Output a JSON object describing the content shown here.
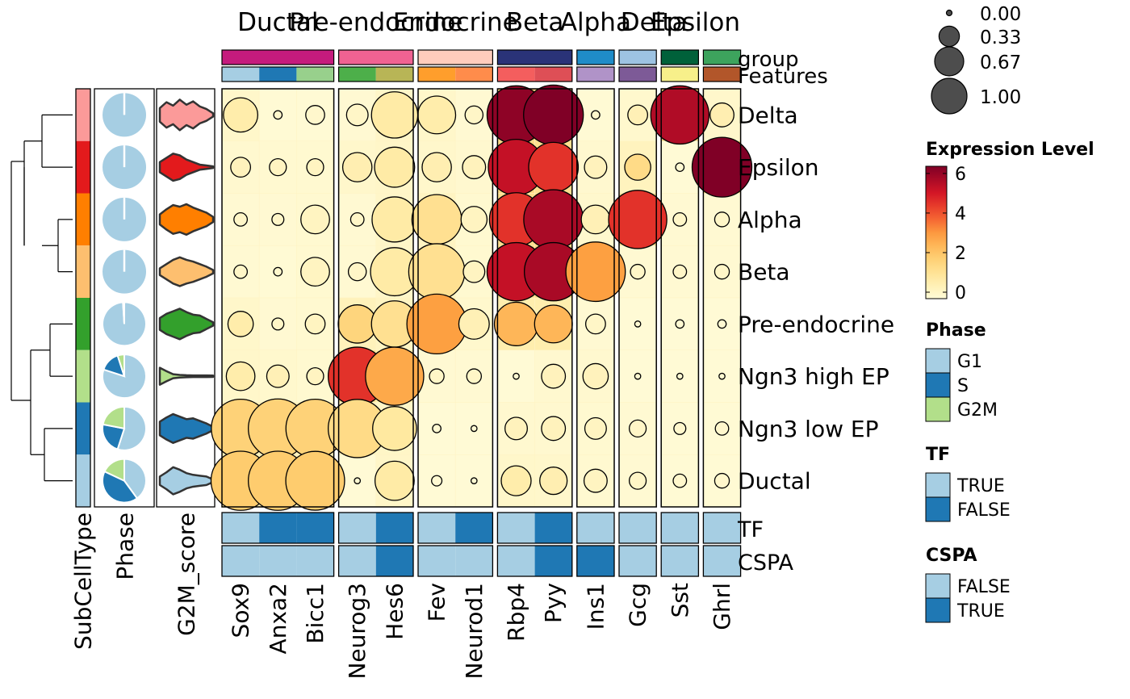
{
  "chart_data": {
    "type": "heatmap",
    "cell_types": [
      "Delta",
      "Epsilon",
      "Alpha",
      "Beta",
      "Pre-endocrine",
      "Ngn3 high EP",
      "Ngn3 low EP",
      "Ductal"
    ],
    "group_labels": [
      "Ductal",
      "Pre-endocrine",
      "Endocrine",
      "Beta",
      "Alpha",
      "Delta",
      "Epsilon"
    ],
    "groups": [
      {
        "name": "Ductal",
        "color": "#C51B7D",
        "genes": [
          "Sox9",
          "Anxa2",
          "Bicc1"
        ]
      },
      {
        "name": "Pre-endocrine",
        "color": "#F06292",
        "genes": [
          "Neurog3",
          "Hes6"
        ]
      },
      {
        "name": "Endocrine",
        "color": "#FFCCBC",
        "genes": [
          "Fev",
          "Neurod1"
        ]
      },
      {
        "name": "Beta",
        "color": "#2A3378",
        "genes": [
          "Rbp4",
          "Pyy"
        ]
      },
      {
        "name": "Alpha",
        "color": "#1F8CC8",
        "genes": [
          "Ins1"
        ]
      },
      {
        "name": "Delta",
        "color": "#9DC3E2",
        "genes": [
          "Gcg"
        ]
      },
      {
        "name": "Epsilon",
        "color": "#00613A",
        "genes": [
          "Sst"
        ]
      },
      {
        "name": "",
        "color": "#3DA35D",
        "genes": [
          "Ghrl"
        ]
      }
    ],
    "genes": [
      "Sox9",
      "Anxa2",
      "Bicc1",
      "Neurog3",
      "Hes6",
      "Fev",
      "Neurod1",
      "Rbp4",
      "Pyy",
      "Ins1",
      "Gcg",
      "Sst",
      "Ghrl"
    ],
    "feature_colors": [
      "#A6CEE3",
      "#1F78B4",
      "#98D08C",
      "#4DAF4A",
      "#B8B556",
      "#FF9E2C",
      "#FF8C4B",
      "#F45E5E",
      "#DE4F56",
      "#B093C8",
      "#7D5A97",
      "#F7F08A",
      "#B2562A"
    ],
    "dot_fraction": [
      [
        0.33,
        0.02,
        0.1,
        0.13,
        0.6,
        0.4,
        0.09,
        0.95,
        1.0,
        0.02,
        0.11,
        0.95,
        0.16
      ],
      [
        0.11,
        0.08,
        0.08,
        0.24,
        0.45,
        0.24,
        0.15,
        0.87,
        0.69,
        0.14,
        0.19,
        0.02,
        1.0
      ],
      [
        0.05,
        0.04,
        0.23,
        0.05,
        0.57,
        0.69,
        0.19,
        0.8,
        0.99,
        0.23,
        0.95,
        0.05,
        0.06
      ],
      [
        0.05,
        0.02,
        0.23,
        0.09,
        0.65,
        0.88,
        0.13,
        0.95,
        0.95,
        0.99,
        0.06,
        0.05,
        0.06
      ],
      [
        0.18,
        0.04,
        0.11,
        0.41,
        0.6,
        1.0,
        0.26,
        0.53,
        0.4,
        0.11,
        0.01,
        0.02,
        0.02
      ],
      [
        0.23,
        0.14,
        0.08,
        0.95,
        0.95,
        0.06,
        0.06,
        0.01,
        0.16,
        0.18,
        0.01,
        0.01,
        0.01
      ],
      [
        0.96,
        0.98,
        0.96,
        0.95,
        0.54,
        0.02,
        0.01,
        0.14,
        0.16,
        0.13,
        0.08,
        0.04,
        0.05
      ],
      [
        0.98,
        0.98,
        0.97,
        0.01,
        0.43,
        0.03,
        0.01,
        0.25,
        0.21,
        0.15,
        0.08,
        0.05,
        0.06
      ]
    ],
    "expression": [
      [
        0.8,
        0.2,
        0.2,
        0.3,
        0.9,
        0.8,
        0.3,
        6.0,
        6.2,
        0.2,
        0.6,
        5.5,
        0.7
      ],
      [
        0.5,
        0.4,
        0.4,
        0.7,
        0.9,
        0.7,
        0.5,
        5.2,
        4.5,
        0.5,
        1.5,
        0.1,
        6.2
      ],
      [
        0.3,
        0.3,
        0.4,
        0.3,
        0.9,
        1.3,
        0.4,
        4.5,
        5.6,
        0.6,
        4.5,
        0.3,
        0.3
      ],
      [
        0.3,
        0.2,
        0.4,
        0.3,
        0.9,
        1.3,
        0.4,
        5.2,
        5.6,
        3.0,
        0.3,
        0.3,
        0.3
      ],
      [
        0.8,
        0.3,
        0.4,
        1.7,
        1.3,
        3.0,
        0.6,
        2.5,
        2.5,
        0.3,
        0.1,
        0.1,
        0.1
      ],
      [
        0.8,
        0.6,
        0.4,
        4.5,
        2.8,
        0.3,
        0.3,
        0.1,
        0.5,
        0.5,
        0.1,
        0.1,
        0.1
      ],
      [
        1.8,
        1.8,
        1.8,
        1.5,
        1.0,
        0.1,
        0.1,
        0.5,
        0.5,
        0.4,
        0.3,
        0.2,
        0.2
      ],
      [
        2.0,
        2.0,
        2.0,
        0.1,
        0.9,
        0.1,
        0.1,
        0.8,
        0.7,
        0.4,
        0.3,
        0.2,
        0.2
      ]
    ],
    "subcelltype_colors": [
      "#FB9A99",
      "#E31A1C",
      "#FF7F00",
      "#FDBF6F",
      "#33A02C",
      "#B2DF8A",
      "#1F78B4",
      "#A6CEE3"
    ],
    "phase_fractions": [
      [
        1.0,
        0.0,
        0.0
      ],
      [
        1.0,
        0.0,
        0.0
      ],
      [
        1.0,
        0.0,
        0.0
      ],
      [
        1.0,
        0.0,
        0.0
      ],
      [
        0.99,
        0.01,
        0.0
      ],
      [
        0.8,
        0.15,
        0.05
      ],
      [
        0.55,
        0.23,
        0.22
      ],
      [
        0.4,
        0.42,
        0.18
      ]
    ],
    "violin_colors": [
      "#FB9A99",
      "#E31A1C",
      "#FF7F00",
      "#FDBF6F",
      "#33A02C",
      "#B2DF8A",
      "#1F78B4",
      "#A6CEE3"
    ],
    "tf": [
      "TRUE",
      "FALSE",
      "FALSE",
      "TRUE",
      "FALSE",
      "TRUE",
      "FALSE",
      "TRUE",
      "FALSE",
      "TRUE",
      "TRUE",
      "TRUE",
      "TRUE"
    ],
    "cspa": [
      "FALSE",
      "FALSE",
      "FALSE",
      "FALSE",
      "TRUE",
      "FALSE",
      "FALSE",
      "FALSE",
      "TRUE",
      "TRUE",
      "FALSE",
      "FALSE",
      "FALSE"
    ],
    "row_annotation_labels": [
      "group",
      "Features"
    ],
    "bottom_annotation_labels": [
      "TF",
      "CSPA"
    ],
    "left_annotation_labels": [
      "SubCellType",
      "Phase",
      "G2M_score"
    ],
    "size_legend": {
      "values": [
        "0.00",
        "0.33",
        "0.67",
        "1.00"
      ]
    },
    "color_legend": {
      "title": "Expression Level",
      "ticks": [
        "0",
        "2",
        "4",
        "6"
      ],
      "range": [
        0,
        6.2
      ]
    },
    "phase_legend": {
      "title": "Phase",
      "items": [
        {
          "label": "G1",
          "color": "#A6CEE3"
        },
        {
          "label": "S",
          "color": "#1F78B4"
        },
        {
          "label": "G2M",
          "color": "#B2DF8A"
        }
      ]
    },
    "tf_legend": {
      "title": "TF",
      "items": [
        {
          "label": "TRUE",
          "color": "#A6CEE3"
        },
        {
          "label": "FALSE",
          "color": "#1F78B4"
        }
      ]
    },
    "cspa_legend": {
      "title": "CSPA",
      "items": [
        {
          "label": "FALSE",
          "color": "#A6CEE3"
        },
        {
          "label": "TRUE",
          "color": "#1F78B4"
        }
      ]
    },
    "colors": {
      "tf_light": "#A6CEE3",
      "tf_dark": "#1F78B4",
      "dot_edge": "#000000",
      "size_dot": "#4D4D4D"
    }
  }
}
